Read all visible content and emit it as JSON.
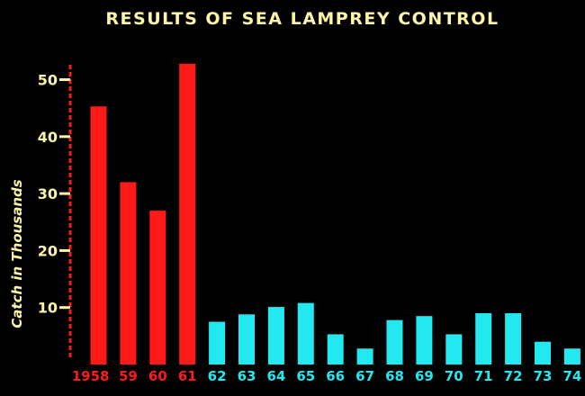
{
  "chart_data": {
    "type": "bar",
    "title": "RESULTS OF SEA LAMPREY CONTROL",
    "xlabel": "",
    "ylabel": "Catch in Thousands",
    "ylim": [
      0,
      55
    ],
    "yticks": [
      10,
      20,
      30,
      40,
      50
    ],
    "grid": false,
    "legend": "none",
    "categories": [
      "1958",
      "59",
      "60",
      "61",
      "62",
      "63",
      "64",
      "65",
      "66",
      "67",
      "68",
      "69",
      "70",
      "71",
      "72",
      "73",
      "74"
    ],
    "series": [
      {
        "values": [
          45.3,
          32,
          27,
          52.8,
          7.5,
          8.8,
          10.1,
          10.8,
          5.3,
          2.8,
          7.8,
          8.5,
          5.3,
          9,
          9,
          4,
          2.8
        ]
      }
    ],
    "colors": {
      "background": "#000000",
      "pre_control": "#ff1a1a",
      "post_control": "#22e8f0",
      "text": "#fff5a8",
      "axis": "#ff1a1a"
    },
    "pre_control_count": 4
  }
}
